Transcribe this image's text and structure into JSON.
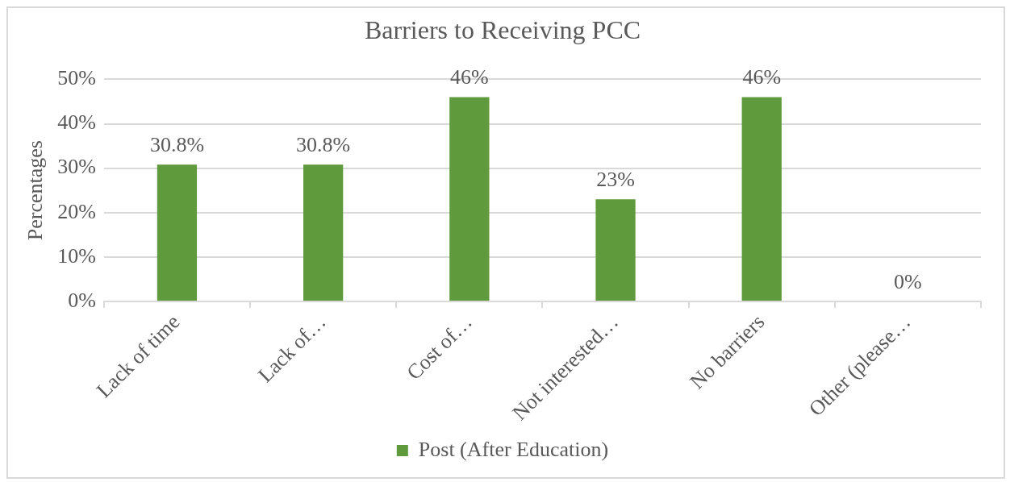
{
  "chart_data": {
    "type": "bar",
    "title": "Barriers to Receiving PCC",
    "ylabel": "Percentages",
    "categories": [
      "Lack of time",
      "Lack of…",
      "Cost of…",
      "Not interested…",
      "No barriers",
      "Other (please…"
    ],
    "series": [
      {
        "name": "Post (After Education)",
        "color": "#5f9a3c",
        "values": [
          30.8,
          30.8,
          46,
          23,
          46,
          0
        ],
        "value_labels": [
          "30.8%",
          "30.8%",
          "46%",
          "23%",
          "46%",
          "0%"
        ]
      }
    ],
    "ylim": [
      0,
      50
    ],
    "yticks": [
      {
        "value": 0,
        "label": "0%"
      },
      {
        "value": 10,
        "label": "10%"
      },
      {
        "value": 20,
        "label": "20%"
      },
      {
        "value": 30,
        "label": "30%"
      },
      {
        "value": 40,
        "label": "40%"
      },
      {
        "value": 50,
        "label": "50%"
      }
    ],
    "grid": "y",
    "legend": "bottom"
  }
}
